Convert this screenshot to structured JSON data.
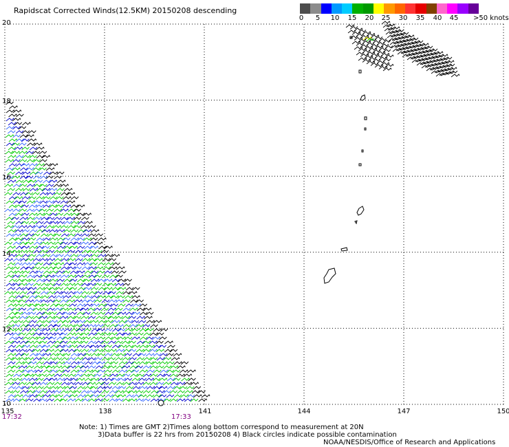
{
  "title": "Rapidscat Corrected Winds(12.5KM) 20150208 descending",
  "colorbar": {
    "colors": [
      "#4d4d4d",
      "#8c8c8c",
      "#0000ff",
      "#0099ff",
      "#00ccff",
      "#00b000",
      "#009900",
      "#ffff00",
      "#ff9900",
      "#ff6600",
      "#ff3333",
      "#e60000",
      "#804000",
      "#ff66cc",
      "#ff00ff",
      "#9900ff",
      "#660099"
    ],
    "labels": [
      "0",
      "5",
      "10",
      "15",
      "20",
      "25",
      "30",
      "35",
      "40",
      "45",
      ">50 knots"
    ]
  },
  "axes": {
    "lat_labels": [
      "20",
      "18",
      "16",
      "14",
      "12",
      "10"
    ],
    "lon_labels": [
      "135",
      "138",
      "141",
      "144",
      "147",
      "150"
    ],
    "lat_range": [
      10,
      20
    ],
    "lon_range": [
      135,
      150
    ],
    "grid": "dotted"
  },
  "times": {
    "left": "17:32",
    "right": "17:33"
  },
  "notes": {
    "line1": "Note: 1) Times are GMT 2)Times along bottom correspond to measurement at 20N",
    "line2": "3)Data buffer is 22 hrs from 20150208 4) Black circles indicate possible contamination"
  },
  "credit": "NOAA/NESDIS/Office of Research and Applications",
  "barb_colors": {
    "calm": "#000000",
    "light": "#0000cc",
    "moderate": "#3366ff",
    "fresh": "#00cc00",
    "strong": "#ffff00"
  }
}
